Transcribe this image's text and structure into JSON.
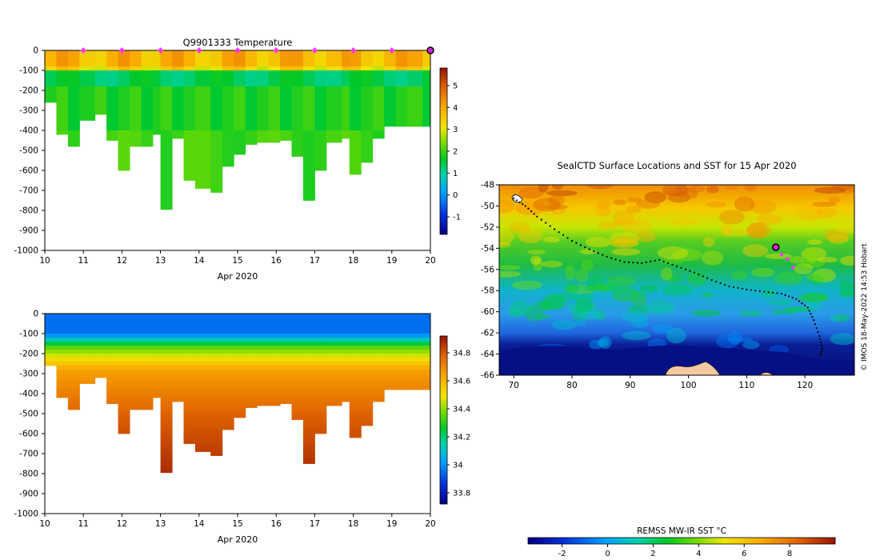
{
  "chart_data": [
    {
      "type": "heatmap",
      "title": "Q9901333  Temperature",
      "xlabel": "Apr 2020",
      "ylabel": "",
      "x_ticks": [
        "10",
        "11",
        "12",
        "13",
        "14",
        "15",
        "16",
        "17",
        "18",
        "19",
        "20"
      ],
      "y_ticks": [
        "0",
        "-100",
        "-200",
        "-300",
        "-400",
        "-500",
        "-600",
        "-700",
        "-800",
        "-900",
        "-1000"
      ],
      "xlim": [
        10,
        20
      ],
      "ylim": [
        -1000,
        0
      ],
      "colorbar_ticks": [
        "-1",
        "0",
        "1",
        "2",
        "3",
        "4",
        "5"
      ],
      "colorbar_range": [
        -1.8,
        5.8
      ],
      "profile_times": [
        10.0,
        10.3,
        10.6,
        10.9,
        11.3,
        11.6,
        11.9,
        12.2,
        12.5,
        12.8,
        13.0,
        13.3,
        13.6,
        13.9,
        14.3,
        14.6,
        14.9,
        15.2,
        15.5,
        15.8,
        16.1,
        16.4,
        16.7,
        17.0,
        17.3,
        17.7,
        17.9,
        18.2,
        18.5,
        18.8,
        19.1,
        19.4,
        19.8
      ],
      "profile_max_depth": [
        260,
        420,
        480,
        350,
        320,
        450,
        600,
        480,
        480,
        420,
        795,
        440,
        650,
        690,
        710,
        580,
        520,
        470,
        460,
        460,
        450,
        530,
        750,
        600,
        460,
        440,
        620,
        560,
        440,
        380,
        380,
        380,
        380
      ],
      "surface_position_markers": [
        11,
        12,
        13,
        14,
        15,
        16,
        17,
        18,
        19
      ],
      "current_position_marker": 20
    },
    {
      "type": "heatmap",
      "title": "",
      "xlabel": "Apr 2020",
      "x_ticks": [
        "10",
        "11",
        "12",
        "13",
        "14",
        "15",
        "16",
        "17",
        "18",
        "19",
        "20"
      ],
      "y_ticks": [
        "0",
        "-100",
        "-200",
        "-300",
        "-400",
        "-500",
        "-600",
        "-700",
        "-800",
        "-900",
        "-1000"
      ],
      "xlim": [
        10,
        20
      ],
      "ylim": [
        -1000,
        0
      ],
      "colorbar_ticks": [
        "33.8",
        "34",
        "34.2",
        "34.4",
        "34.6",
        "34.8"
      ],
      "colorbar_range": [
        33.72,
        34.92
      ]
    },
    {
      "type": "heatmap",
      "title": "SealCTD Surface Locations and SST for 15 Apr 2020",
      "x_ticks": [
        "70",
        "80",
        "90",
        "100",
        "110",
        "120"
      ],
      "y_ticks": [
        "-48",
        "-50",
        "-52",
        "-54",
        "-56",
        "-58",
        "-60",
        "-62",
        "-64",
        "-66"
      ],
      "xlim": [
        67.5,
        128.5
      ],
      "ylim": [
        -66,
        -48
      ],
      "track_points": [
        [
          70,
          -49.3
        ],
        [
          72,
          -50
        ],
        [
          74,
          -51
        ],
        [
          77,
          -52.2
        ],
        [
          80,
          -53.3
        ],
        [
          83,
          -54.1
        ],
        [
          86,
          -54.8
        ],
        [
          89,
          -55.3
        ],
        [
          92,
          -55.4
        ],
        [
          95,
          -55.1
        ],
        [
          98,
          -55.7
        ],
        [
          101,
          -56.3
        ],
        [
          104,
          -57
        ],
        [
          107,
          -57.6
        ],
        [
          110,
          -57.9
        ],
        [
          113,
          -58.1
        ],
        [
          116,
          -58.3
        ],
        [
          118.5,
          -58.8
        ],
        [
          120.5,
          -59.6
        ],
        [
          121.5,
          -60.8
        ],
        [
          122.5,
          -62.3
        ],
        [
          123,
          -63.5
        ],
        [
          122.5,
          -64.3
        ]
      ],
      "recent_track_points": [
        [
          115.2,
          -53.9
        ],
        [
          116,
          -54.6
        ],
        [
          117,
          -55
        ],
        [
          118,
          -55.8
        ]
      ],
      "current_location": [
        115,
        -53.9
      ],
      "credit": "© IMOS 18-May-2022 14:53 Hobart",
      "colorbar_label": "REMSS MW-IR SST °C",
      "colorbar_ticks": [
        "-2",
        "0",
        "2",
        "4",
        "6",
        "8"
      ],
      "colorbar_range": [
        -3.5,
        10
      ]
    }
  ]
}
